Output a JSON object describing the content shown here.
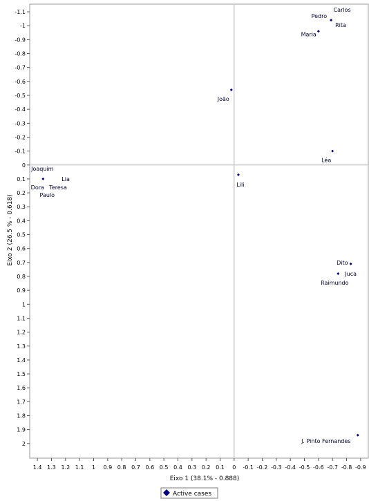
{
  "chart_data": {
    "type": "scatter",
    "xlabel": "Eixo 1 (38.1% - 0.888)",
    "ylabel": "Eixo 2 (26.5 % - 0.618)",
    "xlim": [
      1.45,
      -0.95
    ],
    "ylim": [
      -1.15,
      2.1
    ],
    "x_ticks": [
      1.4,
      1.3,
      1.2,
      1.1,
      1,
      0.9,
      0.8,
      0.7,
      0.6,
      0.5,
      0.4,
      0.3,
      0.2,
      0.1,
      0,
      -0.1,
      -0.2,
      -0.3,
      -0.4,
      -0.5,
      -0.6,
      -0.7,
      -0.8,
      -0.9
    ],
    "y_ticks": [
      -1.1,
      -1,
      -0.9,
      -0.8,
      -0.7,
      -0.6,
      -0.5,
      -0.4,
      -0.3,
      -0.2,
      -0.1,
      0,
      0.1,
      0.2,
      0.3,
      0.4,
      0.5,
      0.6,
      0.7,
      0.8,
      0.9,
      1,
      1.1,
      1.2,
      1.3,
      1.4,
      1.5,
      1.6,
      1.7,
      1.8,
      1.9,
      2
    ],
    "grid": false,
    "legend_position": "bottom",
    "series": [
      {
        "name": "Active cases",
        "color": "#000080",
        "points": [
          {
            "label": "Carlos",
            "x": -0.69,
            "y": -1.04
          },
          {
            "label": "Pedro",
            "x": -0.69,
            "y": -1.04
          },
          {
            "label": "Rita",
            "x": -0.69,
            "y": -1.04
          },
          {
            "label": "Maria",
            "x": -0.6,
            "y": -0.96
          },
          {
            "label": "João",
            "x": 0.02,
            "y": -0.54
          },
          {
            "label": "Léa",
            "x": -0.7,
            "y": -0.1
          },
          {
            "label": "Lili",
            "x": -0.03,
            "y": 0.07
          },
          {
            "label": "Joaquim",
            "x": 1.36,
            "y": 0.1
          },
          {
            "label": "Lia",
            "x": 1.36,
            "y": 0.1
          },
          {
            "label": "Dora",
            "x": 1.36,
            "y": 0.1
          },
          {
            "label": "Teresa",
            "x": 1.36,
            "y": 0.1
          },
          {
            "label": "Paulo",
            "x": 1.36,
            "y": 0.1
          },
          {
            "label": "Dito",
            "x": -0.83,
            "y": 0.71
          },
          {
            "label": "Juca",
            "x": -0.74,
            "y": 0.78
          },
          {
            "label": "Raimundo",
            "x": -0.74,
            "y": 0.78
          },
          {
            "label": "J. Pinto Fernandes",
            "x": -0.88,
            "y": 1.94
          }
        ]
      }
    ]
  }
}
